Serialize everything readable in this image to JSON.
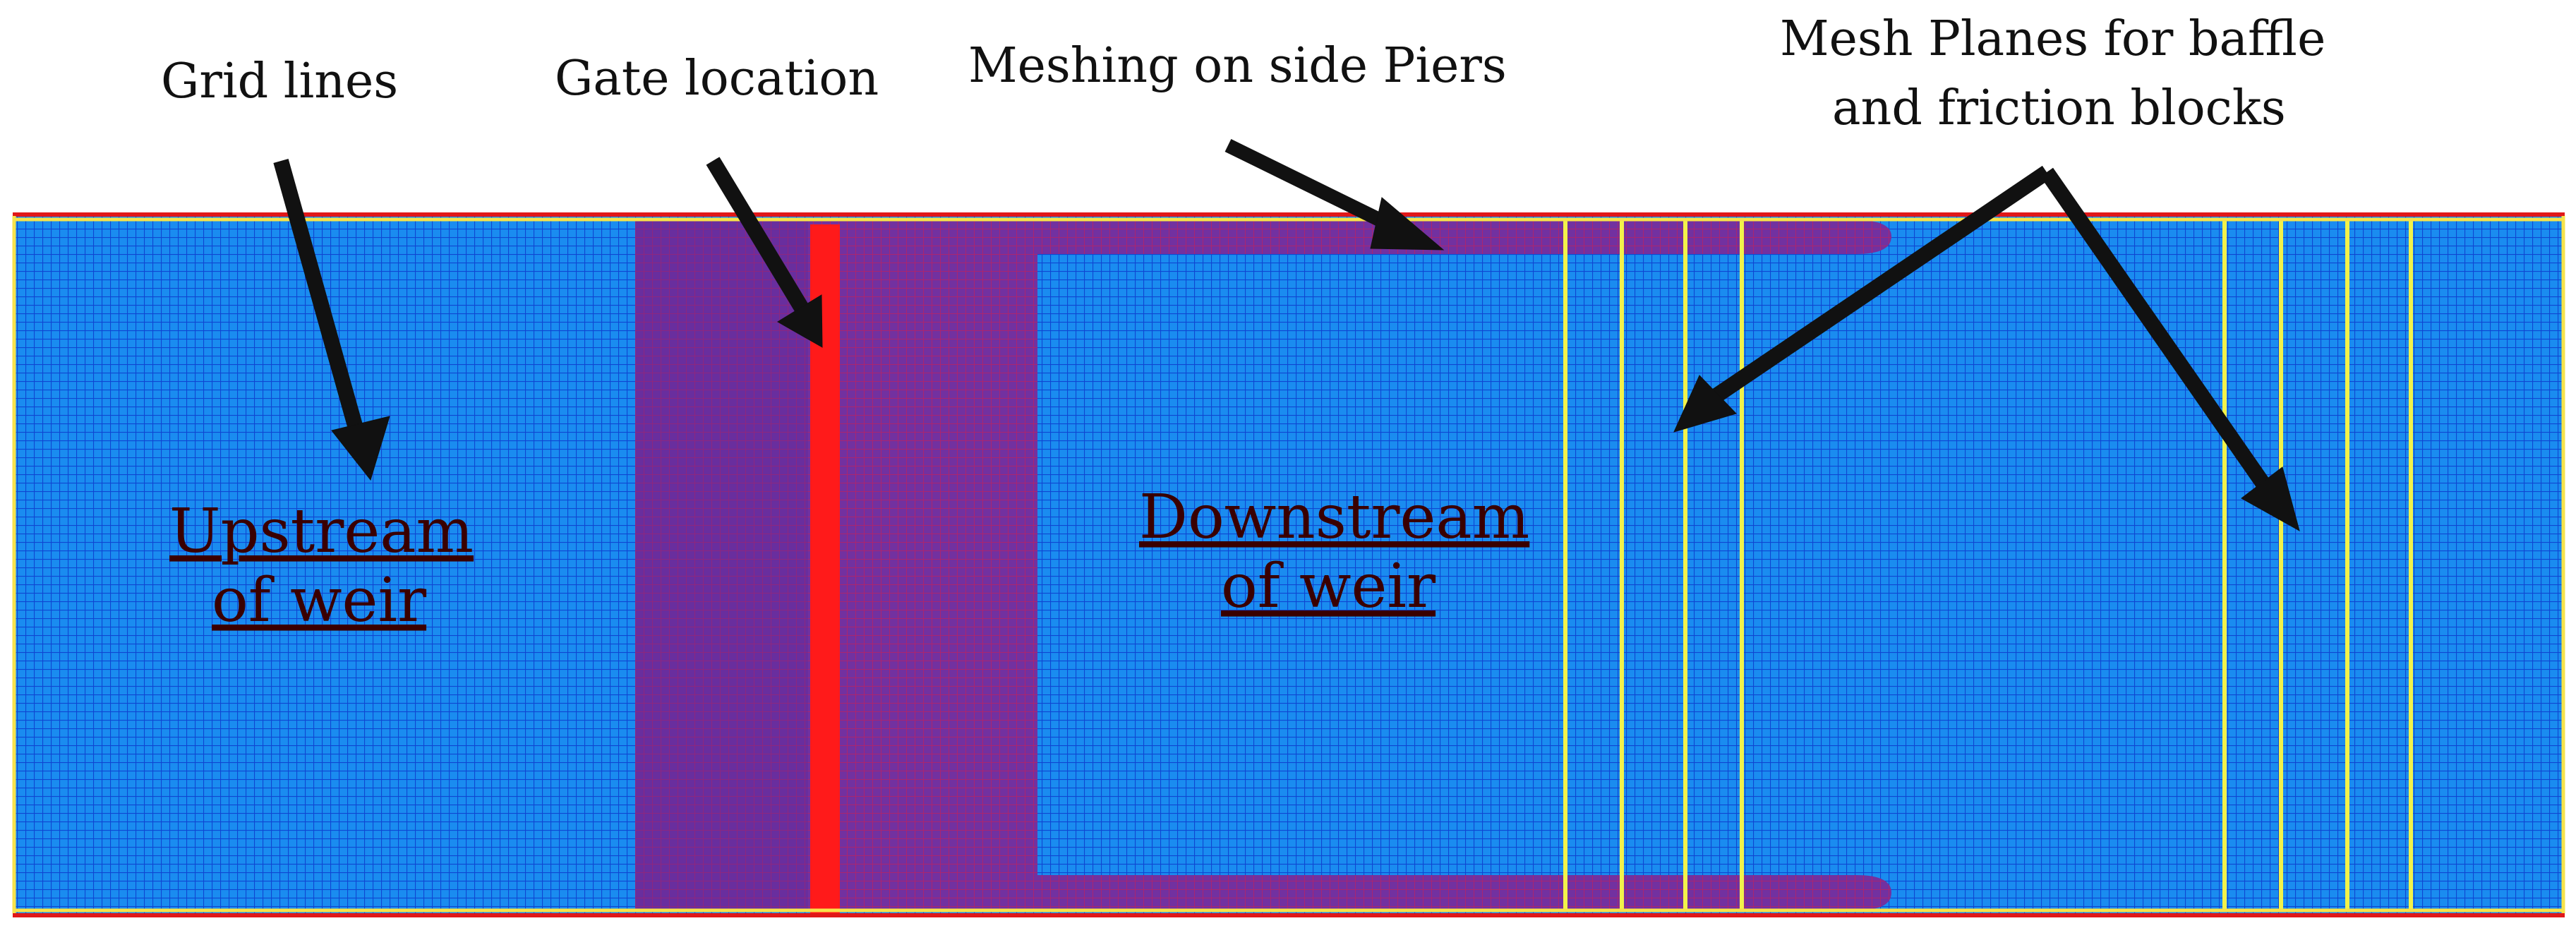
{
  "labels": {
    "grid_lines": "Grid lines",
    "gate_location": "Gate location",
    "meshing_piers": "Meshing on side Piers",
    "mesh_planes_line1": "Mesh Planes for baffle",
    "mesh_planes_line2": "and friction blocks"
  },
  "regions": {
    "upstream_line1": "Upstream",
    "upstream_line2": "of weir",
    "downstream_line1": "Downstream",
    "downstream_line2": "of weir"
  },
  "colors": {
    "mesh_blue": "#1a8cf0",
    "grid_line_blue": "#0a2fc8",
    "pier_purple": "#7a2a9a",
    "gate_red": "#ff1a1a",
    "mesh_plane_yellow": "#f2f24a",
    "frame_red": "#e01818",
    "frame_yellow": "#f7e34a",
    "arrow_black": "#111111"
  }
}
